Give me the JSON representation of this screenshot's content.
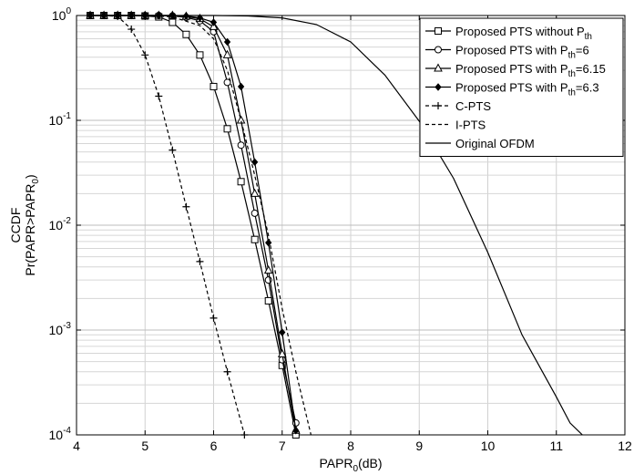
{
  "chart_data": {
    "type": "line",
    "x_scale": "linear",
    "y_scale": "log",
    "xlim": [
      4,
      12
    ],
    "ylim": [
      0.0001,
      1
    ],
    "grid": true,
    "legend_position": "top-right",
    "xlabel": {
      "main": "PAPR",
      "sub": "0",
      "tail": "(dB)"
    },
    "ylabel_line1": "CCDF",
    "ylabel_line2": {
      "pre": "Pr(PAPR>PAPR",
      "sub": "0",
      "post": ")"
    },
    "x_ticks": [
      4,
      5,
      6,
      7,
      8,
      9,
      10,
      11,
      12
    ],
    "y_ticks": [
      {
        "value": 1,
        "base": "10",
        "exp": "0"
      },
      {
        "value": 0.1,
        "base": "10",
        "exp": "-1"
      },
      {
        "value": 0.01,
        "base": "10",
        "exp": "-2"
      },
      {
        "value": 0.001,
        "base": "10",
        "exp": "-3"
      },
      {
        "value": 0.0001,
        "base": "10",
        "exp": "-4"
      }
    ],
    "series": [
      {
        "name": "Proposed PTS without P_th",
        "legend": {
          "pre": "Proposed PTS without P",
          "sub": "th",
          "post": ""
        },
        "marker": "square",
        "dash": "solid",
        "x": [
          4.2,
          4.4,
          4.6,
          4.8,
          5.0,
          5.2,
          5.4,
          5.6,
          5.8,
          6.0,
          6.2,
          6.4,
          6.6,
          6.8,
          7.0,
          7.2
        ],
        "y": [
          1,
          1,
          1,
          1,
          0.99,
          0.97,
          0.86,
          0.66,
          0.42,
          0.21,
          0.083,
          0.026,
          0.0073,
          0.0019,
          0.00046,
          0.0001
        ]
      },
      {
        "name": "Proposed PTS with P_th=6",
        "legend": {
          "pre": "Proposed PTS with P",
          "sub": "th",
          "post": "=6"
        },
        "marker": "circle",
        "dash": "solid",
        "x": [
          4.2,
          4.4,
          4.6,
          4.8,
          5.0,
          5.2,
          5.4,
          5.6,
          5.8,
          6.0,
          6.2,
          6.4,
          6.6,
          6.8,
          7.0,
          7.2
        ],
        "y": [
          1,
          1,
          1,
          1,
          1,
          1,
          0.99,
          0.96,
          0.89,
          0.7,
          0.23,
          0.058,
          0.013,
          0.003,
          0.00052,
          0.00013
        ]
      },
      {
        "name": "Proposed PTS with P_th=6.15",
        "legend": {
          "pre": "Proposed PTS with P",
          "sub": "th",
          "post": "=6.15"
        },
        "marker": "triangle",
        "dash": "solid",
        "x": [
          4.2,
          4.4,
          4.6,
          4.8,
          5.0,
          5.2,
          5.4,
          5.6,
          5.8,
          6.0,
          6.2,
          6.4,
          6.6,
          6.8,
          7.0,
          7.2
        ],
        "y": [
          1,
          1,
          1,
          1,
          1,
          1,
          1,
          0.98,
          0.93,
          0.78,
          0.42,
          0.1,
          0.02,
          0.0037,
          0.00059,
          0.00011
        ]
      },
      {
        "name": "Proposed PTS with P_th=6.3",
        "legend": {
          "pre": "Proposed PTS with P",
          "sub": "th",
          "post": "=6.3"
        },
        "marker": "diamond",
        "dash": "solid",
        "x": [
          4.2,
          4.4,
          4.6,
          4.8,
          5.0,
          5.2,
          5.4,
          5.6,
          5.8,
          6.0,
          6.2,
          6.4,
          6.6,
          6.8,
          7.0,
          7.2
        ],
        "y": [
          1,
          1,
          1,
          1,
          1,
          1,
          1,
          0.99,
          0.95,
          0.86,
          0.56,
          0.21,
          0.04,
          0.0068,
          0.00095,
          0.00011
        ]
      },
      {
        "name": "C-PTS",
        "legend": {
          "pre": "C-PTS",
          "sub": "",
          "post": ""
        },
        "marker": "plus",
        "dash": "dashed",
        "x": [
          4.2,
          4.4,
          4.6,
          4.8,
          5.0,
          5.2,
          5.4,
          5.6,
          5.8,
          6.0,
          6.2,
          6.45
        ],
        "y": [
          1,
          1,
          0.98,
          0.74,
          0.42,
          0.17,
          0.052,
          0.015,
          0.0045,
          0.0013,
          0.0004,
          0.0001
        ]
      },
      {
        "name": "I-PTS",
        "legend": {
          "pre": "I-PTS",
          "sub": "",
          "post": ""
        },
        "marker": "none",
        "dash": "dashed",
        "x": [
          4.2,
          4.6,
          5.0,
          5.4,
          5.8,
          6.0,
          6.2,
          6.4,
          6.6,
          6.8,
          7.0,
          7.2,
          7.42
        ],
        "y": [
          1,
          1,
          1,
          0.97,
          0.8,
          0.6,
          0.3,
          0.1,
          0.03,
          0.008,
          0.0016,
          0.0004,
          0.0001
        ]
      },
      {
        "name": "Original OFDM",
        "legend": {
          "pre": "Original OFDM",
          "sub": "",
          "post": ""
        },
        "marker": "none",
        "dash": "solid",
        "x": [
          4.2,
          6.0,
          6.5,
          7.0,
          7.5,
          8.0,
          8.5,
          9.0,
          9.5,
          10.0,
          10.5,
          11.0,
          11.2,
          11.38
        ],
        "y": [
          1,
          1,
          0.99,
          0.95,
          0.82,
          0.56,
          0.27,
          0.098,
          0.028,
          0.0055,
          0.0009,
          0.00023,
          0.00013,
          0.0001
        ]
      }
    ]
  }
}
